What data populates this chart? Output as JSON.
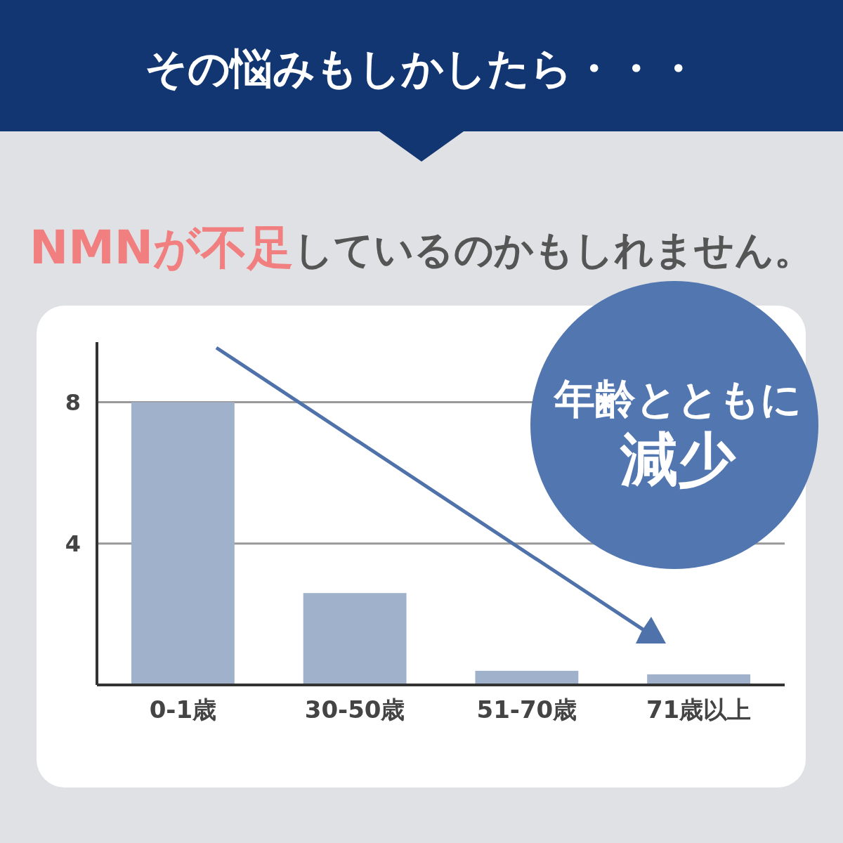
{
  "chart_data": {
    "type": "bar",
    "title": "その悩みもしかしたら・・・",
    "subtitle": "**NMNが不足**しているのかもしれません。",
    "categories": [
      "0-1歳",
      "30-50歳",
      "51-70歳",
      "71歳以上"
    ],
    "values": [
      8,
      2.6,
      0.4,
      0.3
    ],
    "color": "#9fb1cb",
    "ylim": [
      0,
      9.7
    ],
    "yticks": [
      4,
      8
    ],
    "grid": "y",
    "annotations": [
      "年齢とともに",
      "減少"
    ]
  }
}
